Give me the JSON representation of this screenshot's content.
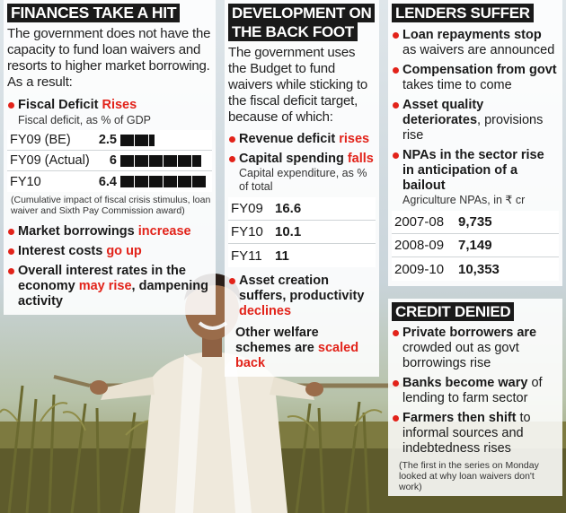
{
  "col1": {
    "title": "FINANCES TAKE A HIT",
    "intro": "The government does not have the capacity to fund loan waivers and resorts to higher market borrowing. As a result:",
    "fiscal": {
      "label": "Fiscal Deficit ",
      "highlight": "Rises",
      "sub": "Fiscal deficit, as % of GDP"
    },
    "rows": [
      {
        "label": "FY09 (BE)",
        "value": 2.5,
        "display": "2.5"
      },
      {
        "label": "FY09 (Actual)",
        "value": 6,
        "display": "6"
      },
      {
        "label": "FY10",
        "value": 6.4,
        "display": "6.4"
      }
    ],
    "note": "(Cumulative impact of fiscal crisis stimulus, loan waiver and Sixth Pay Commission award)",
    "b1": {
      "text": "Market borrowings ",
      "highlight": "increase"
    },
    "b2": {
      "text": "Interest costs ",
      "highlight": "go up"
    },
    "b3": {
      "text": "Overall interest rates in the economy ",
      "highlight": "may rise",
      "text2": ", dampening activity"
    }
  },
  "col2": {
    "title1": "DEVELOPMENT ON",
    "title2": "THE BACK FOOT",
    "intro": "The government uses the Budget to fund waivers while sticking to the fiscal deficit target, because of which:",
    "b1": {
      "text": "Revenue deficit ",
      "highlight": "rises"
    },
    "b2": {
      "text": "Capital spending ",
      "highlight": "falls",
      "sub": "Capital expenditure, as % of total"
    },
    "rows": [
      {
        "label": "FY09",
        "value": "16.6"
      },
      {
        "label": "FY10",
        "value": "10.1"
      },
      {
        "label": "FY11",
        "value": "11"
      }
    ],
    "b3": {
      "text": "Asset creation suffers, productivity ",
      "highlight": "declines"
    },
    "welfare": {
      "text": "Other welfare schemes are ",
      "highlight": "scaled back"
    }
  },
  "col3": {
    "title": "LENDERS SUFFER",
    "b1": {
      "bold": "Loan repayments stop",
      "text": " as waivers are announced"
    },
    "b2": {
      "bold": "Compensation from govt",
      "text": " takes time to come"
    },
    "b3": {
      "bold": "Asset quality deteriorates",
      "text": ", provisions rise"
    },
    "b4": {
      "bold": "NPAs in the sector rise in anticipation of a bailout",
      "sub": "Agriculture NPAs, in ₹ cr"
    },
    "rows": [
      {
        "label": "2007-08",
        "value": "9,735"
      },
      {
        "label": "2008-09",
        "value": "7,149"
      },
      {
        "label": "2009-10",
        "value": "10,353"
      }
    ],
    "title2": "CREDIT DENIED",
    "c1": {
      "bold": "Private borrowers are",
      "text": " crowded out as govt borrowings rise"
    },
    "c2": {
      "bold": "Banks become wary",
      "text": " of lending to farm sector"
    },
    "c3": {
      "bold": "Farmers then shift",
      "text": " to informal sources and indebtedness rises"
    },
    "footnote": "(The first in the series on Monday looked at why loan waivers don't work)"
  },
  "colors": {
    "accent": "#e2231a",
    "header_bg": "#1a1a1a"
  }
}
